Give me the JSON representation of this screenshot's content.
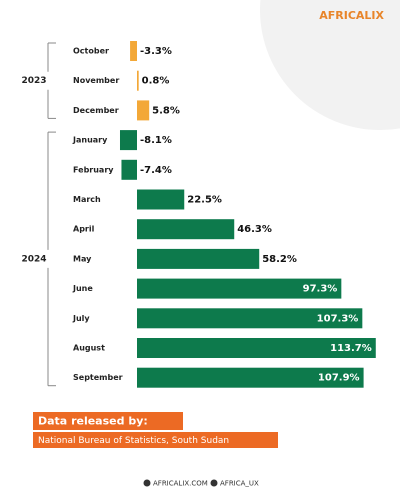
{
  "chart_data": {
    "type": "bar",
    "orientation": "horizontal",
    "logo": "AFRICALIX",
    "categories": [
      "October",
      "November",
      "December",
      "January",
      "February",
      "March",
      "April",
      "May",
      "June",
      "July",
      "August",
      "September"
    ],
    "series": [
      {
        "name": "2023",
        "color": "#f3a838",
        "values": [
          -3.3,
          0.8,
          5.8,
          null,
          null,
          null,
          null,
          null,
          null,
          null,
          null,
          null
        ],
        "value_labels": [
          "-3.3%",
          "0.8%",
          "5.8%",
          null,
          null,
          null,
          null,
          null,
          null,
          null,
          null,
          null
        ]
      },
      {
        "name": "2024",
        "color": "#0d7a4c",
        "values": [
          null,
          null,
          null,
          -8.1,
          -7.4,
          22.5,
          46.3,
          58.2,
          97.3,
          107.3,
          113.7,
          107.9
        ],
        "value_labels": [
          null,
          null,
          null,
          "-8.1%",
          "-7.4%",
          "22.5%",
          "46.3%",
          "58.2%",
          "97.3%",
          "107.3%",
          "113.7%",
          "107.9%"
        ]
      }
    ],
    "source_heading": "Data released by:",
    "source": "National Bureau of Statistics, South Sudan",
    "footer": [
      "AFRICALIX.COM",
      "AFRICA_UX"
    ]
  }
}
